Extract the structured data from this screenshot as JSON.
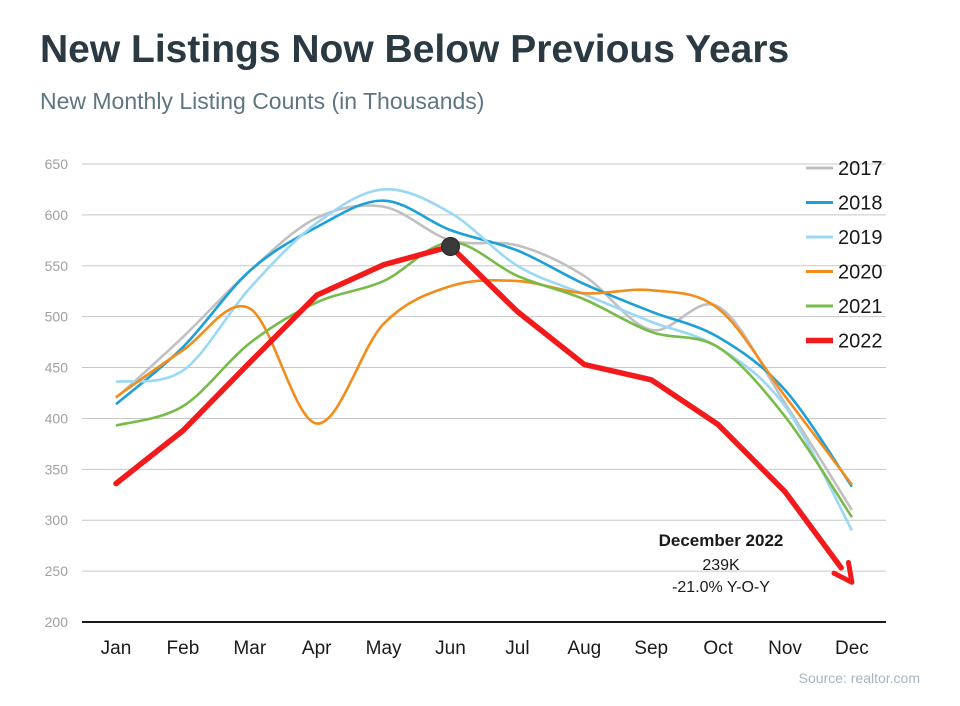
{
  "title": "New Listings Now Below Previous Years",
  "subtitle": "New Monthly Listing Counts (in Thousands)",
  "source": "Source: realtor.com",
  "annotation": {
    "heading": "December 2022",
    "value": "239K",
    "change": "-21.0% Y-O-Y"
  },
  "chart_data": {
    "type": "line",
    "title": "New Listings Now Below Previous Years",
    "subtitle": "New Monthly Listing Counts (in Thousands)",
    "xlabel": "",
    "ylabel": "",
    "categories": [
      "Jan",
      "Feb",
      "Mar",
      "Apr",
      "May",
      "Jun",
      "Jul",
      "Aug",
      "Sep",
      "Oct",
      "Nov",
      "Dec"
    ],
    "ylim": [
      200,
      650
    ],
    "yticks": [
      200,
      250,
      300,
      350,
      400,
      450,
      500,
      550,
      600,
      650
    ],
    "grid": true,
    "legend_position": "right",
    "series": [
      {
        "name": "2017",
        "color": "#c0c0c0",
        "values": [
          420,
          480,
          545,
          597,
          608,
          575,
          570,
          540,
          487,
          510,
          415,
          310
        ]
      },
      {
        "name": "2018",
        "color": "#1ca0d8",
        "values": [
          414,
          470,
          545,
          588,
          614,
          585,
          565,
          532,
          505,
          480,
          428,
          333
        ]
      },
      {
        "name": "2019",
        "color": "#9ad8f4",
        "values": [
          436,
          447,
          528,
          592,
          625,
          602,
          550,
          522,
          495,
          470,
          412,
          290
        ]
      },
      {
        "name": "2020",
        "color": "#f28c1a",
        "values": [
          421,
          467,
          508,
          395,
          493,
          530,
          535,
          523,
          526,
          508,
          422,
          335
        ]
      },
      {
        "name": "2021",
        "color": "#77bb4a",
        "values": [
          393,
          412,
          474,
          514,
          535,
          573,
          540,
          517,
          485,
          470,
          402,
          303
        ]
      },
      {
        "name": "2022",
        "color": "#f21a1a",
        "values": [
          336,
          388,
          455,
          521,
          551,
          569,
          505,
          453,
          438,
          394,
          328,
          239
        ]
      }
    ]
  }
}
